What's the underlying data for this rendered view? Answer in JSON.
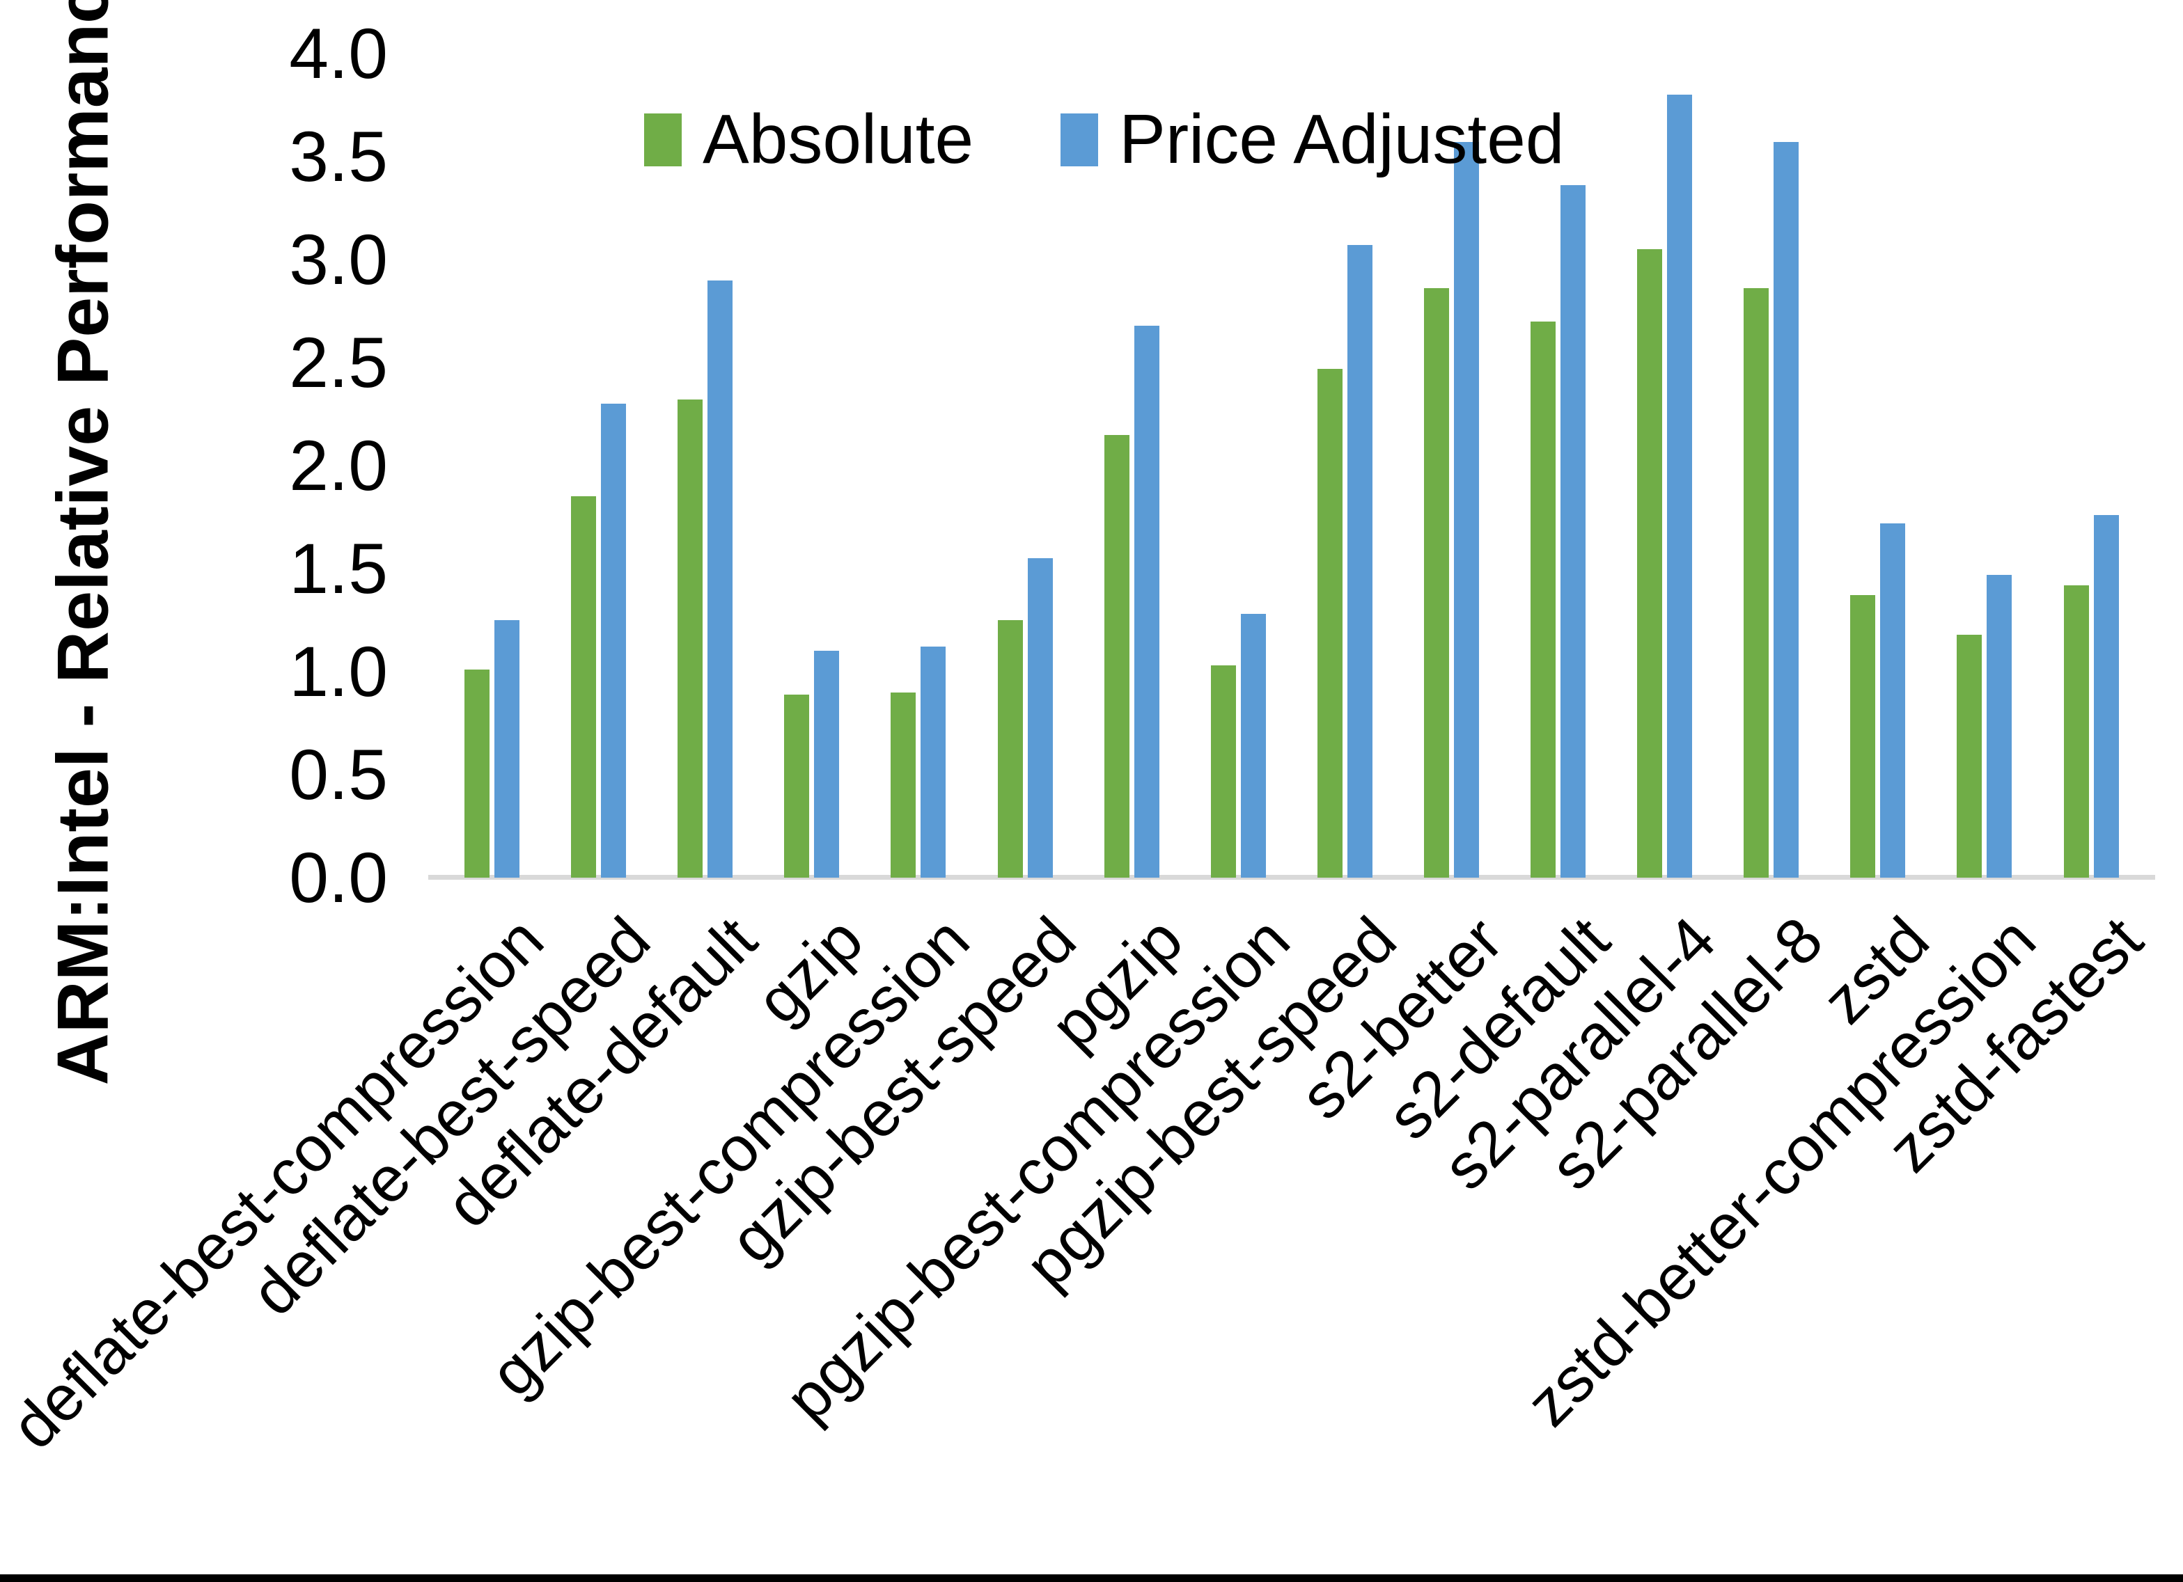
{
  "chart_data": {
    "type": "bar",
    "title": "",
    "xlabel": "",
    "ylabel": "ARM:Intel - Relative Performance",
    "ylim": [
      0.0,
      4.0
    ],
    "ytick_step": 0.5,
    "ytick_labels": [
      "0.0",
      "0.5",
      "1.0",
      "1.5",
      "2.0",
      "2.5",
      "3.0",
      "3.5",
      "4.0"
    ],
    "grid": false,
    "legend_position": "top-center",
    "axis_line_color": "#d9d9d9",
    "categories": [
      "deflate-best-compression",
      "deflate-best-speed",
      "deflate-default",
      "gzip",
      "gzip-best-compression",
      "gzip-best-speed",
      "pgzip",
      "pgzip-best-compression",
      "pgzip-best-speed",
      "s2-better",
      "s2-default",
      "s2-parallel-4",
      "s2-parallel-8",
      "zstd",
      "zstd-better-compression",
      "zstd-fastest"
    ],
    "series": [
      {
        "name": "Absolute",
        "color": "#70AD47",
        "values": [
          1.01,
          1.85,
          2.32,
          0.89,
          0.9,
          1.25,
          2.15,
          1.03,
          2.47,
          2.86,
          2.7,
          3.05,
          2.86,
          1.37,
          1.18,
          1.42
        ]
      },
      {
        "name": "Price Adjusted",
        "color": "#5B9BD5",
        "values": [
          1.25,
          2.3,
          2.9,
          1.1,
          1.12,
          1.55,
          2.68,
          1.28,
          3.07,
          3.57,
          3.36,
          3.8,
          3.57,
          1.72,
          1.47,
          1.76
        ]
      }
    ]
  }
}
